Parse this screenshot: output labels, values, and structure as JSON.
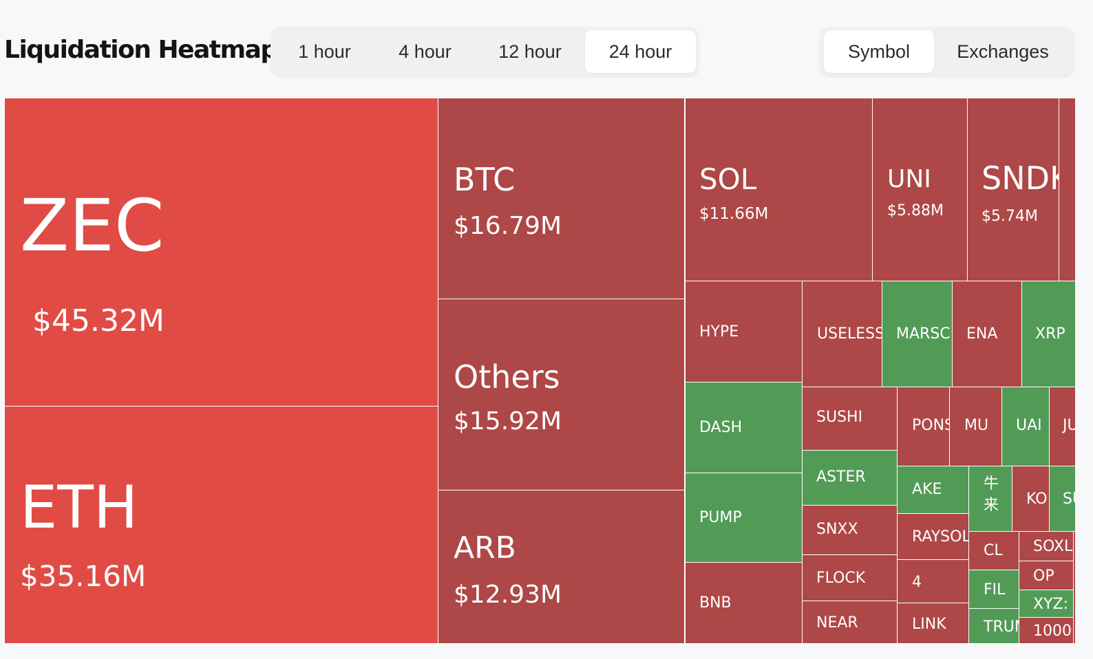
{
  "header": {
    "title": "Liquidation Heatmap",
    "timeframes": [
      "1 hour",
      "4 hour",
      "12 hour",
      "24 hour"
    ],
    "active_timeframe": "24 hour",
    "views": [
      "Symbol",
      "Exchanges"
    ],
    "active_view": "Symbol"
  },
  "colors": {
    "negative": "#ae4747",
    "negative_highlight": "#e14b45",
    "positive": "#529b57"
  },
  "tiles": [
    {
      "symbol": "ZEC",
      "value": "$45.32M"
    },
    {
      "symbol": "ETH",
      "value": "$35.16M"
    },
    {
      "symbol": "BTC",
      "value": "$16.79M"
    },
    {
      "symbol": "Others",
      "value": "$15.92M"
    },
    {
      "symbol": "ARB",
      "value": "$12.93M"
    },
    {
      "symbol": "SOL",
      "value": "$11.66M"
    },
    {
      "symbol": "UNI",
      "value": "$5.88M"
    },
    {
      "symbol": "SNDK",
      "value": "$5.74M"
    },
    {
      "symbol": "HYPE"
    },
    {
      "symbol": "USELESS"
    },
    {
      "symbol": "MARSC"
    },
    {
      "symbol": "ENA"
    },
    {
      "symbol": "XRP"
    },
    {
      "symbol": "DASH"
    },
    {
      "symbol": "SUSHI"
    },
    {
      "symbol": "PONS"
    },
    {
      "symbol": "MU"
    },
    {
      "symbol": "UAI"
    },
    {
      "symbol": "JU"
    },
    {
      "symbol": "PUMP"
    },
    {
      "symbol": "ASTER"
    },
    {
      "symbol": "AKE"
    },
    {
      "symbol": "牛来"
    },
    {
      "symbol": "KO"
    },
    {
      "symbol": "SU"
    },
    {
      "symbol": "SNXX"
    },
    {
      "symbol": "RAYSOL"
    },
    {
      "symbol": "CL"
    },
    {
      "symbol": "SOXL"
    },
    {
      "symbol": "OP"
    },
    {
      "symbol": "BNB"
    },
    {
      "symbol": "FLOCK"
    },
    {
      "symbol": "4"
    },
    {
      "symbol": "FIL"
    },
    {
      "symbol": "XYZ:"
    },
    {
      "symbol": "NEAR"
    },
    {
      "symbol": "LINK"
    },
    {
      "symbol": "TRUM"
    },
    {
      "symbol": "1000"
    }
  ]
}
